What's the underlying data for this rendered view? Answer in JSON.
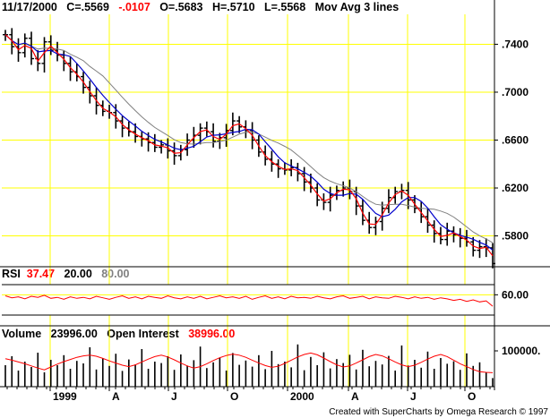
{
  "header": {
    "date": "11/17/2000",
    "close": "C=.5569",
    "change": "-.0107",
    "open": "O=.5683",
    "high": "H=.5710",
    "low": "L=.5568",
    "study": "Mov Avg 3 lines"
  },
  "rsi_header": {
    "label": "RSI",
    "value": "37.47",
    "lower": "20.00",
    "upper": "80.00"
  },
  "volume_header": {
    "label": "Volume",
    "volume": "23996.00",
    "oi_label": "Open Interest",
    "oi": "38996.00"
  },
  "footer": "Created with SuperCharts by Omega Research © 1997",
  "colors": {
    "price": "#000000",
    "ma_fast": "#ff0000",
    "ma_mid": "#0000cc",
    "ma_slow": "#808080",
    "grid": "#ffff00",
    "change_text": "#ff0000",
    "rsi_value": "#ff0000",
    "rsi_upper": "#808080"
  },
  "chart_data": [
    {
      "type": "line",
      "panel": "price",
      "x_labels": [
        "1999",
        "A",
        "J",
        "O",
        "2000",
        "A",
        "J",
        "O"
      ],
      "y_ticks": [
        ".7400",
        ".7000",
        ".6600",
        ".6200",
        ".5800"
      ],
      "ylim": [
        0.555,
        0.765
      ],
      "grid": true,
      "series": [
        {
          "name": "Close",
          "values": [
            0.748,
            0.738,
            0.733,
            0.745,
            0.728,
            0.724,
            0.742,
            0.735,
            0.731,
            0.724,
            0.717,
            0.713,
            0.704,
            0.697,
            0.689,
            0.684,
            0.683,
            0.676,
            0.67,
            0.667,
            0.663,
            0.661,
            0.658,
            0.654,
            0.656,
            0.651,
            0.647,
            0.652,
            0.66,
            0.664,
            0.67,
            0.667,
            0.659,
            0.662,
            0.668,
            0.676,
            0.671,
            0.668,
            0.66,
            0.65,
            0.644,
            0.64,
            0.636,
            0.635,
            0.637,
            0.632,
            0.625,
            0.62,
            0.61,
            0.608,
            0.614,
            0.618,
            0.62,
            0.617,
            0.605,
            0.593,
            0.587,
            0.592,
            0.603,
            0.612,
            0.617,
            0.618,
            0.61,
            0.603,
            0.596,
            0.589,
            0.582,
            0.577,
            0.584,
            0.581,
            0.578,
            0.575,
            0.568,
            0.571,
            0.57,
            0.5569
          ]
        }
      ]
    },
    {
      "type": "line",
      "panel": "rsi",
      "y_ticks": [
        "60.00"
      ],
      "levels": [
        80,
        20
      ],
      "series": [
        {
          "name": "RSI",
          "values": [
            58,
            54,
            56,
            52,
            57,
            55,
            59,
            53,
            55,
            51,
            56,
            53,
            55,
            52,
            57,
            54,
            51,
            55,
            58,
            53,
            56,
            52,
            57,
            55,
            53,
            58,
            54,
            52,
            56,
            53,
            57,
            52,
            55,
            58,
            54,
            56,
            53,
            57,
            51,
            55,
            58,
            53,
            56,
            52,
            57,
            54,
            55,
            53,
            57,
            54,
            52,
            56,
            58,
            53,
            55,
            57,
            52,
            56,
            54,
            53,
            57,
            55,
            52,
            56,
            53,
            55,
            51,
            54,
            52,
            49,
            51,
            47,
            50,
            46,
            48,
            37.47
          ]
        }
      ]
    },
    {
      "type": "bar",
      "panel": "volume",
      "y_ticks": [
        "100000."
      ],
      "series": [
        {
          "name": "Volume",
          "values": [
            60000,
            85000,
            45000,
            70000,
            55000,
            95000,
            40000,
            75000,
            60000,
            88000,
            50000,
            72000,
            65000,
            110000,
            48000,
            80000,
            58000,
            92000,
            44000,
            76000,
            62000,
            105000,
            50000,
            70000,
            66000,
            85000,
            47000,
            90000,
            59000,
            74000,
            112000,
            52000,
            68000,
            80000,
            45000,
            94000,
            61000,
            73000,
            56000,
            88000,
            49000,
            100000,
            63000,
            70000,
            54000,
            118000,
            46000,
            83000,
            60000,
            96000,
            51000,
            77000,
            66000,
            89000,
            48000,
            103000,
            57000,
            72000,
            62000,
            86000,
            45000,
            115000,
            59000,
            75000,
            53000,
            98000,
            50000,
            80000,
            64000,
            71000,
            47000,
            93000,
            58000,
            68000,
            40000,
            24000
          ]
        },
        {
          "name": "Open Interest",
          "values": [
            78000,
            74000,
            69000,
            64000,
            58000,
            52000,
            47000,
            55000,
            63000,
            70000,
            76000,
            82000,
            86000,
            88000,
            85000,
            79000,
            72000,
            66000,
            60000,
            56000,
            61000,
            69000,
            77000,
            84000,
            88000,
            83000,
            75000,
            66000,
            58000,
            52000,
            56000,
            64000,
            73000,
            81000,
            87000,
            91000,
            88000,
            82000,
            74000,
            66000,
            59000,
            54000,
            57000,
            65000,
            74000,
            83000,
            90000,
            94000,
            89000,
            80000,
            70000,
            61000,
            55000,
            58000,
            66000,
            75000,
            84000,
            90000,
            86000,
            78000,
            69000,
            61000,
            56000,
            60000,
            68000,
            77000,
            85000,
            90000,
            84000,
            74000,
            64000,
            56000,
            48000,
            42000,
            40000,
            38996
          ]
        }
      ]
    }
  ]
}
